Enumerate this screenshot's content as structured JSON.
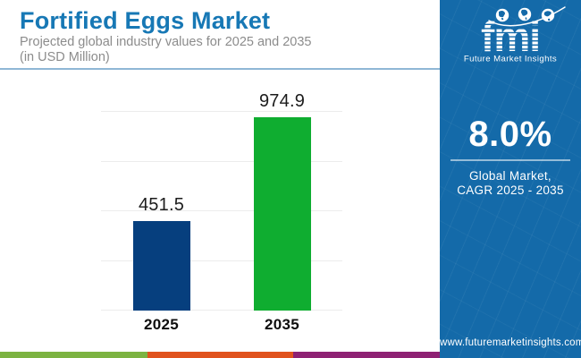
{
  "header": {
    "title": "Fortified Eggs Market",
    "subtitle_line1": "Projected global industry values for 2025 and 2035",
    "subtitle_line2": "(in USD Million)",
    "title_color": "#1778B5",
    "subtitle_color": "#8C8C8C",
    "divider_color": "#8FB7D6"
  },
  "chart_data": {
    "type": "bar",
    "categories": [
      "2025",
      "2035"
    ],
    "values": [
      451.5,
      974.9
    ],
    "title": "Fortified Eggs Market",
    "subtitle": "Projected global industry values for 2025 and 2035 (in USD Million)",
    "xlabel": "",
    "ylabel": "USD Million",
    "ylim": [
      0,
      1000
    ],
    "grid_step": 250,
    "grid": "horizontal-light",
    "legend": false,
    "bar_colors": [
      "#063F7E",
      "#0FAD30"
    ]
  },
  "sidebar": {
    "background": "#146AA9",
    "logo": {
      "brand": "fmi",
      "caption": "Future Market Insights",
      "icons": [
        "globe-americas-icon",
        "globe-europe-africa-icon",
        "globe-asia-icon",
        "swoosh-orbit-icon"
      ]
    },
    "cagr_value": "8.0%",
    "cagr_caption_line1": "Global Market,",
    "cagr_caption_line2": "CAGR 2025 - 2035",
    "website": "www.futuremarketinsights.com"
  },
  "footer": {
    "strip_colors": [
      "#7CB342",
      "#E0521D",
      "#8E2173"
    ]
  }
}
